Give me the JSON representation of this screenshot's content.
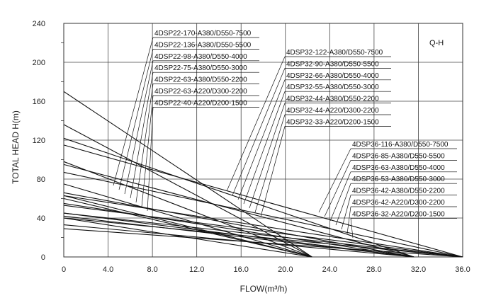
{
  "chart_data": {
    "type": "line",
    "title": "",
    "annotation": "Q-H",
    "xlabel": "FLOW(m³/h)",
    "ylabel": "TOTAL HEAD H(m)",
    "xlim": [
      0,
      36
    ],
    "ylim": [
      0,
      240
    ],
    "grid": true,
    "xticks": [
      "0",
      "4.0",
      "8.0",
      "12.0",
      "16.0",
      "20.0",
      "24.0",
      "28.0",
      "32.0",
      "36.0"
    ],
    "yticks": [
      "0",
      "40",
      "80",
      "120",
      "160",
      "200",
      "240"
    ],
    "legend_groups": [
      {
        "group": "4DSP22",
        "labels": [
          "4DSP22-170-A380/D550-7500",
          "4DSP22-136-A380/D550-5500",
          "4DSP22-98-A380/D550-4000",
          "4DSP22-75-A380/D550-3000",
          "4DSP22-63-A380/D550-2200",
          "4DSP22-63-A220/D300-2200",
          "4DSP22-40-A220/D200-1500"
        ]
      },
      {
        "group": "4DSP32",
        "labels": [
          "4DSP32-122-A380/D550-7500",
          "4DSP32-90-A380/D550-5500",
          "4DSP32-66-A380/D550-4000",
          "4DSP32-55-A380/D550-3000",
          "4DSP32-44-A380/D550-2200",
          "4DSP32-44-A220/D300-2200",
          "4DSP32-33-A220/D200-1500"
        ]
      },
      {
        "group": "4DSP36",
        "labels": [
          "4DSP36-116-A380/D550-7500",
          "4DSP36-85-A380/D550-5500",
          "4DSP36-63-A380/D550-4000",
          "4DSP36-53-A380/D550-3000",
          "4DSP36-42-A380/D550-2200",
          "4DSP36-42-A220/D300-2200",
          "4DSP36-32-A220/D200-1500"
        ]
      }
    ],
    "series": [
      {
        "name": "4DSP22-170-A380/D550-7500",
        "x": [
          0,
          22.4
        ],
        "y": [
          170,
          0
        ]
      },
      {
        "name": "4DSP22-136-A380/D550-5500",
        "x": [
          0,
          22.4
        ],
        "y": [
          136,
          0
        ]
      },
      {
        "name": "4DSP22-98-A380/D550-4000",
        "x": [
          0,
          22.4
        ],
        "y": [
          98,
          0
        ]
      },
      {
        "name": "4DSP22-75-A380/D550-3000",
        "x": [
          0,
          22.4
        ],
        "y": [
          75,
          0
        ]
      },
      {
        "name": "4DSP22-63-A380/D550-2200",
        "x": [
          0,
          22.4
        ],
        "y": [
          63,
          0
        ]
      },
      {
        "name": "4DSP22-63-A220/D300-2200",
        "x": [
          0,
          22.4
        ],
        "y": [
          60,
          0
        ]
      },
      {
        "name": "4DSP22-40-A220/D200-1500",
        "x": [
          0,
          22.4
        ],
        "y": [
          40,
          0
        ]
      },
      {
        "name": "4DSP32-122-A380/D550-7500",
        "x": [
          0,
          31.6
        ],
        "y": [
          122,
          0
        ]
      },
      {
        "name": "4DSP32-90-A380/D550-5500",
        "x": [
          0,
          31.6
        ],
        "y": [
          95,
          0
        ]
      },
      {
        "name": "4DSP32-66-A380/D550-4000",
        "x": [
          0,
          31.6
        ],
        "y": [
          66,
          0
        ]
      },
      {
        "name": "4DSP32-55-A380/D550-3000",
        "x": [
          0,
          31.6
        ],
        "y": [
          55,
          0
        ]
      },
      {
        "name": "4DSP32-44-A380/D550-2200",
        "x": [
          0,
          31.6
        ],
        "y": [
          45,
          0
        ]
      },
      {
        "name": "4DSP32-44-A220/D300-2200",
        "x": [
          0,
          31.6
        ],
        "y": [
          42,
          0
        ]
      },
      {
        "name": "4DSP32-33-A220/D200-1500",
        "x": [
          0,
          31.6
        ],
        "y": [
          33,
          0
        ]
      },
      {
        "name": "4DSP36-116-A380/D550-7500",
        "x": [
          0,
          36
        ],
        "y": [
          115,
          0
        ]
      },
      {
        "name": "4DSP36-85-A380/D550-5500",
        "x": [
          0,
          36
        ],
        "y": [
          87,
          0
        ]
      },
      {
        "name": "4DSP36-63-A380/D550-4000",
        "x": [
          0,
          36
        ],
        "y": [
          63,
          0
        ]
      },
      {
        "name": "4DSP36-53-A380/D550-3000",
        "x": [
          0,
          36
        ],
        "y": [
          53,
          0
        ]
      },
      {
        "name": "4DSP36-42-A380/D550-2200",
        "x": [
          0,
          36
        ],
        "y": [
          45,
          0
        ]
      },
      {
        "name": "4DSP36-42-A220/D300-2200",
        "x": [
          0,
          36
        ],
        "y": [
          40,
          0
        ]
      },
      {
        "name": "4DSP36-32-A220/D200-1500",
        "x": [
          0,
          36
        ],
        "y": [
          29,
          0
        ]
      }
    ]
  }
}
